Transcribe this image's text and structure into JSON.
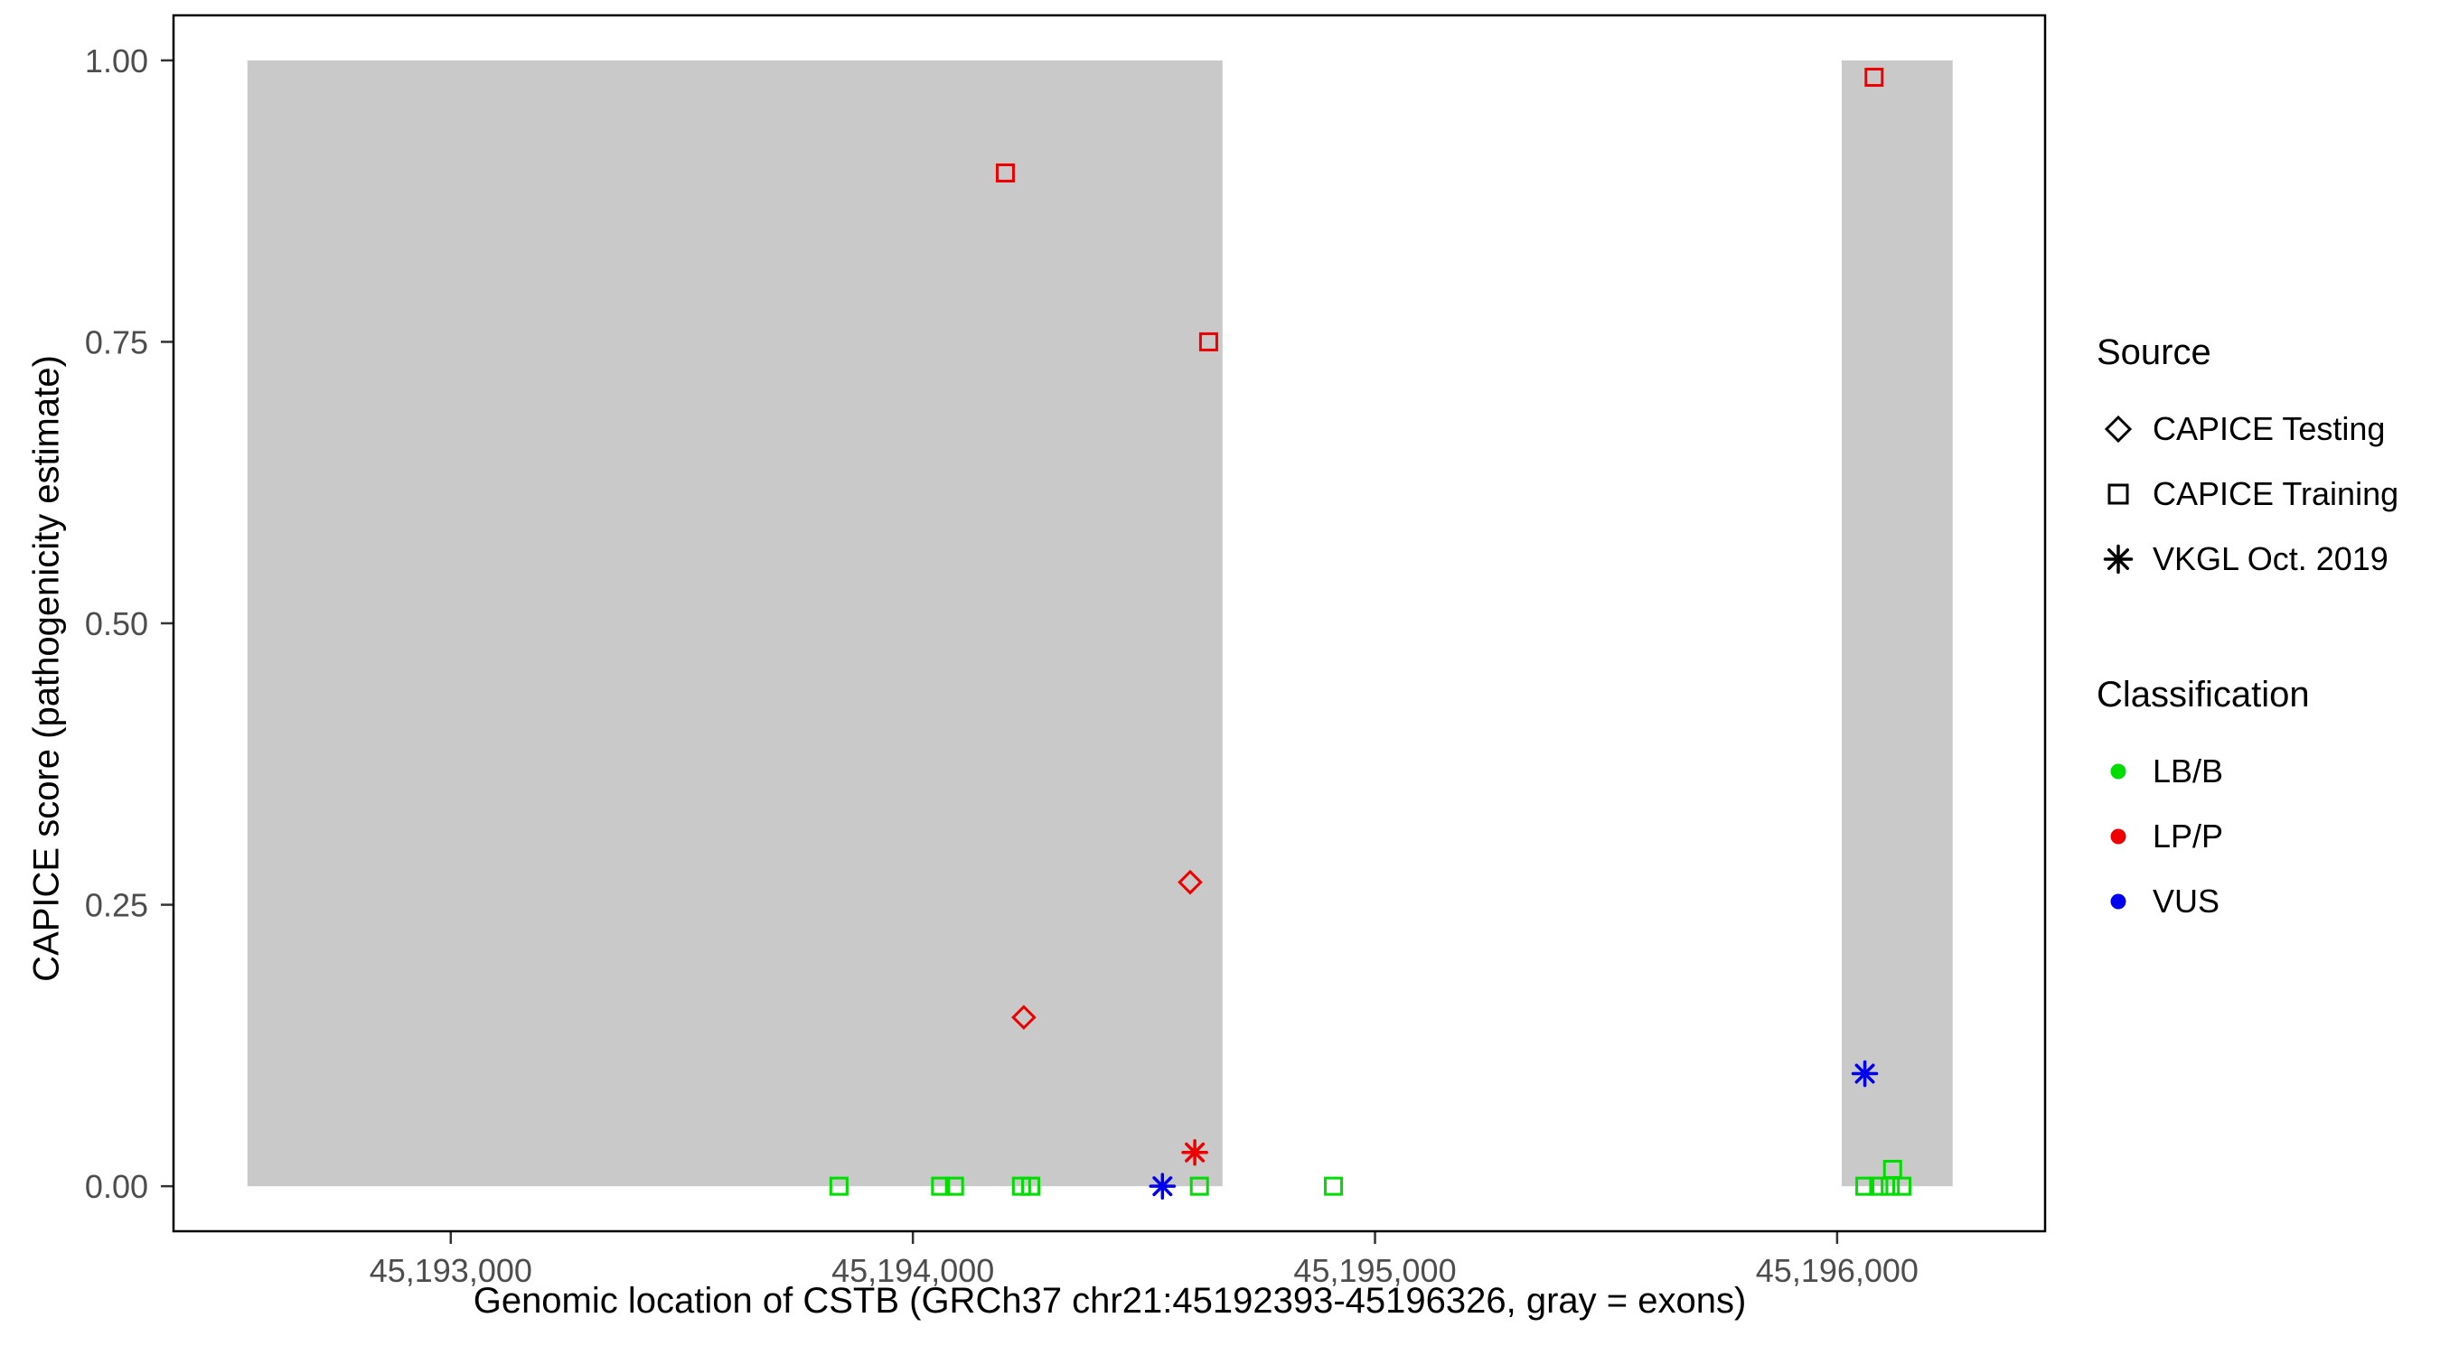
{
  "chart_data": {
    "type": "scatter",
    "title": "",
    "xlabel": "Genomic location of CSTB (GRCh37 chr21:45192393-45196326, gray = exons)",
    "ylabel": "CAPICE score (pathogenicity estimate)",
    "xlim": [
      45192400,
      45196450
    ],
    "ylim": [
      -0.04,
      1.04
    ],
    "grid": false,
    "legend_position": "right",
    "x_ticks": [
      {
        "value": 45193000,
        "label": "45,193,000"
      },
      {
        "value": 45194000,
        "label": "45,194,000"
      },
      {
        "value": 45195000,
        "label": "45,195,000"
      },
      {
        "value": 45196000,
        "label": "45,196,000"
      }
    ],
    "y_ticks": [
      {
        "value": 0,
        "label": "0.00"
      },
      {
        "value": 0.25,
        "label": "0.25"
      },
      {
        "value": 0.5,
        "label": "0.50"
      },
      {
        "value": 0.75,
        "label": "0.75"
      },
      {
        "value": 1.0,
        "label": "1.00"
      }
    ],
    "exons": [
      {
        "start": 45192560,
        "end": 45194670,
        "y0": 0,
        "y1": 1.0
      },
      {
        "start": 45196010,
        "end": 45196250,
        "y0": 0,
        "y1": 1.0
      }
    ],
    "colors": {
      "exon": "#C9C9C9",
      "classification": {
        "LB/B": "#00DD00",
        "LP/P": "#EE0000",
        "VUS": "#0000EE"
      },
      "axis_text": "#4D4D4D",
      "panel_border": "#000000"
    },
    "marker_by_source": {
      "CAPICE Testing": "diamond-open",
      "CAPICE Training": "square-open",
      "VKGL Oct. 2019": "asterisk"
    },
    "points": [
      {
        "x": 45194200,
        "y": 0.9,
        "source": "CAPICE Training",
        "classification": "LP/P"
      },
      {
        "x": 45194640,
        "y": 0.75,
        "source": "CAPICE Training",
        "classification": "LP/P"
      },
      {
        "x": 45194600,
        "y": 0.27,
        "source": "CAPICE Testing",
        "classification": "LP/P"
      },
      {
        "x": 45194240,
        "y": 0.15,
        "source": "CAPICE Testing",
        "classification": "LP/P"
      },
      {
        "x": 45194610,
        "y": 0.03,
        "source": "VKGL Oct. 2019",
        "classification": "LP/P"
      },
      {
        "x": 45194540,
        "y": 0.0,
        "source": "VKGL Oct. 2019",
        "classification": "VUS"
      },
      {
        "x": 45196060,
        "y": 0.1,
        "source": "VKGL Oct. 2019",
        "classification": "VUS"
      },
      {
        "x": 45196080,
        "y": 0.985,
        "source": "CAPICE Training",
        "classification": "LP/P"
      },
      {
        "x": 45193840,
        "y": 0.0,
        "source": "CAPICE Training",
        "classification": "LB/B"
      },
      {
        "x": 45194060,
        "y": 0.0,
        "source": "CAPICE Training",
        "classification": "LB/B"
      },
      {
        "x": 45194090,
        "y": 0.0,
        "source": "CAPICE Training",
        "classification": "LB/B"
      },
      {
        "x": 45194235,
        "y": 0.0,
        "source": "CAPICE Training",
        "classification": "LB/B"
      },
      {
        "x": 45194255,
        "y": 0.0,
        "source": "CAPICE Training",
        "classification": "LB/B"
      },
      {
        "x": 45194620,
        "y": 0.0,
        "source": "CAPICE Training",
        "classification": "LB/B"
      },
      {
        "x": 45194910,
        "y": 0.0,
        "source": "CAPICE Training",
        "classification": "LB/B"
      },
      {
        "x": 45196060,
        "y": 0.0,
        "source": "CAPICE Training",
        "classification": "LB/B"
      },
      {
        "x": 45196090,
        "y": 0.0,
        "source": "CAPICE Training",
        "classification": "LB/B"
      },
      {
        "x": 45196115,
        "y": 0.0,
        "source": "CAPICE Training",
        "classification": "LB/B"
      },
      {
        "x": 45196140,
        "y": 0.0,
        "source": "CAPICE Training",
        "classification": "LB/B"
      },
      {
        "x": 45196120,
        "y": 0.015,
        "source": "CAPICE Training",
        "classification": "LB/B"
      }
    ],
    "legend": {
      "source": {
        "title": "Source",
        "items": [
          {
            "label": "CAPICE Testing",
            "marker": "diamond-open",
            "color": "#000000"
          },
          {
            "label": "CAPICE Training",
            "marker": "square-open",
            "color": "#000000"
          },
          {
            "label": "VKGL Oct. 2019",
            "marker": "asterisk",
            "color": "#000000"
          }
        ]
      },
      "classification": {
        "title": "Classification",
        "items": [
          {
            "label": "LB/B",
            "marker": "circle",
            "color": "#00DD00"
          },
          {
            "label": "LP/P",
            "marker": "circle",
            "color": "#EE0000"
          },
          {
            "label": "VUS",
            "marker": "circle",
            "color": "#0000EE"
          }
        ]
      }
    }
  }
}
